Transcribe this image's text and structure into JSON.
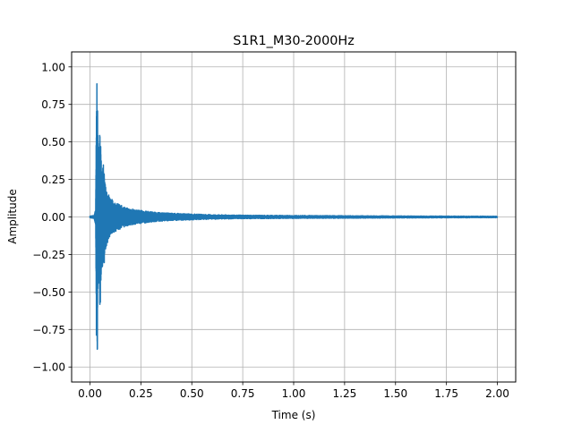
{
  "chart_data": {
    "type": "line",
    "title": "S1R1_M30-2000Hz",
    "xlabel": "Time (s)",
    "ylabel": "Amplitude",
    "xlim": [
      -0.09,
      2.09
    ],
    "ylim": [
      -1.1,
      1.1
    ],
    "grid": true,
    "legend": "none",
    "xticks": [
      0.0,
      0.25,
      0.5,
      0.75,
      1.0,
      1.25,
      1.5,
      1.75,
      2.0
    ],
    "xtick_labels": [
      "0.00",
      "0.25",
      "0.50",
      "0.75",
      "1.00",
      "1.25",
      "1.50",
      "1.75",
      "2.00"
    ],
    "yticks": [
      -1.0,
      -0.75,
      -0.5,
      -0.25,
      0.0,
      0.25,
      0.5,
      0.75,
      1.0
    ],
    "ytick_labels": [
      "−1.00",
      "−0.75",
      "−0.50",
      "−0.25",
      "0.00",
      "0.25",
      "0.50",
      "0.75",
      "1.00"
    ],
    "series": [
      {
        "color": "#1f77b4",
        "envelope_note": "waveform min/max envelope over time",
        "t": [
          0.0,
          0.02,
          0.028,
          0.032,
          0.036,
          0.04,
          0.046,
          0.05,
          0.056,
          0.06,
          0.066,
          0.07,
          0.075,
          0.08,
          0.09,
          0.1,
          0.12,
          0.15,
          0.18,
          0.22,
          0.27,
          0.33,
          0.4,
          0.5,
          0.6,
          0.75,
          1.0,
          1.5,
          2.0
        ],
        "ymax": [
          0.005,
          0.01,
          0.05,
          0.8,
          1.0,
          0.3,
          0.55,
          0.6,
          0.35,
          0.3,
          0.38,
          0.35,
          0.22,
          0.2,
          0.16,
          0.13,
          0.1,
          0.08,
          0.06,
          0.05,
          0.04,
          0.03,
          0.025,
          0.02,
          0.015,
          0.012,
          0.01,
          0.007,
          0.005
        ],
        "ymin": [
          -0.005,
          -0.01,
          -0.05,
          -0.85,
          -1.0,
          -0.35,
          -0.55,
          -0.62,
          -0.4,
          -0.35,
          -0.3,
          -0.37,
          -0.22,
          -0.2,
          -0.16,
          -0.13,
          -0.1,
          -0.08,
          -0.06,
          -0.05,
          -0.04,
          -0.03,
          -0.025,
          -0.02,
          -0.015,
          -0.012,
          -0.01,
          -0.007,
          -0.005
        ]
      }
    ]
  }
}
